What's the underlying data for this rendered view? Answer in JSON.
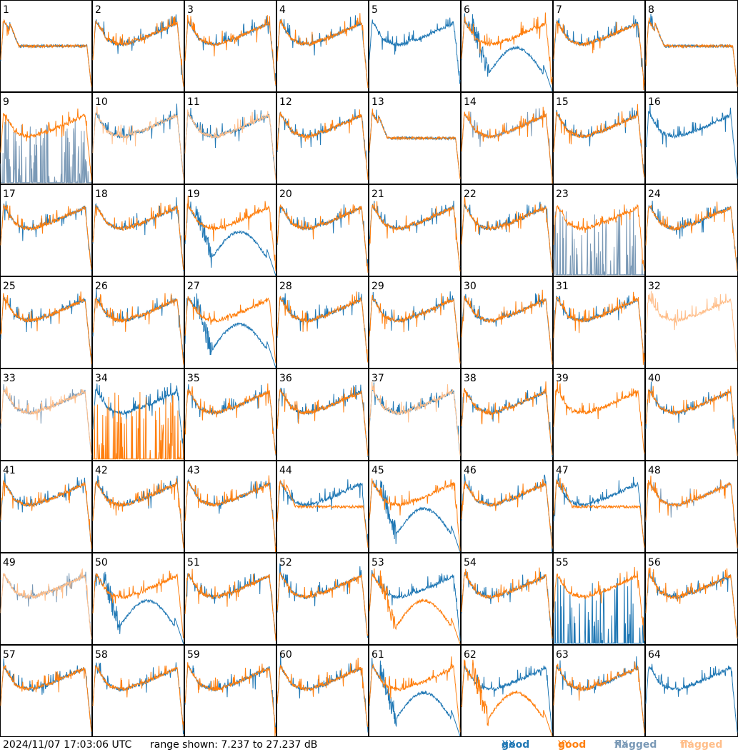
{
  "footer": {
    "timestamp": "2024/11/07 17:03:06 UTC",
    "range_text": "range shown: 7.237 to 27.237 dB"
  },
  "legend": {
    "good_xx": {
      "word": "good",
      "pol": "XX",
      "color": "#1f77b4"
    },
    "good_yy": {
      "word": "good",
      "pol": "YY",
      "color": "#ff7f0e"
    },
    "flagged_xx": {
      "word": "flagged",
      "pol": "XX",
      "color": "#7a99b6"
    },
    "flagged_yy": {
      "word": "flagged",
      "pol": "YY",
      "color": "#ffbe8a"
    }
  },
  "chart_data": {
    "type": "line",
    "layout": "8x8 grid of small multiples",
    "ylim_db": [
      7.237,
      27.237
    ],
    "panels": [
      {
        "id": "1",
        "xx": "droop",
        "yy": "droop"
      },
      {
        "id": "2",
        "xx": "good",
        "yy": "good"
      },
      {
        "id": "3",
        "xx": "good",
        "yy": "good"
      },
      {
        "id": "4",
        "xx": "good",
        "yy": "good"
      },
      {
        "id": "5",
        "xx": "good",
        "yy": "missing"
      },
      {
        "id": "6",
        "xx": "dip",
        "yy": "good"
      },
      {
        "id": "7",
        "xx": "good",
        "yy": "good"
      },
      {
        "id": "8",
        "xx": "droop",
        "yy": "droop"
      },
      {
        "id": "9",
        "xx": "flag-spiky",
        "yy": "good"
      },
      {
        "id": "10",
        "xx": "good",
        "yy": "flag-good"
      },
      {
        "id": "11",
        "xx": "good",
        "yy": "flag-good"
      },
      {
        "id": "12",
        "xx": "good",
        "yy": "good"
      },
      {
        "id": "13",
        "xx": "droop",
        "yy": "droop"
      },
      {
        "id": "14",
        "xx": "flag-good",
        "yy": "good"
      },
      {
        "id": "15",
        "xx": "good",
        "yy": "good"
      },
      {
        "id": "16",
        "xx": "good",
        "yy": "missing"
      },
      {
        "id": "17",
        "xx": "good",
        "yy": "good"
      },
      {
        "id": "18",
        "xx": "good",
        "yy": "good"
      },
      {
        "id": "19",
        "xx": "dip",
        "yy": "good"
      },
      {
        "id": "20",
        "xx": "good",
        "yy": "good"
      },
      {
        "id": "21",
        "xx": "good",
        "yy": "good"
      },
      {
        "id": "22",
        "xx": "good",
        "yy": "good"
      },
      {
        "id": "23",
        "xx": "flag-spiky",
        "yy": "good"
      },
      {
        "id": "24",
        "xx": "good",
        "yy": "good"
      },
      {
        "id": "25",
        "xx": "good",
        "yy": "good"
      },
      {
        "id": "26",
        "xx": "good",
        "yy": "good"
      },
      {
        "id": "27",
        "xx": "dip",
        "yy": "good"
      },
      {
        "id": "28",
        "xx": "good",
        "yy": "good"
      },
      {
        "id": "29",
        "xx": "good",
        "yy": "good"
      },
      {
        "id": "30",
        "xx": "good",
        "yy": "good"
      },
      {
        "id": "31",
        "xx": "good",
        "yy": "good"
      },
      {
        "id": "32",
        "xx": "missing",
        "yy": "flag-good"
      },
      {
        "id": "33",
        "xx": "flag-good",
        "yy": "flag-good"
      },
      {
        "id": "34",
        "xx": "good",
        "yy": "spiky"
      },
      {
        "id": "35",
        "xx": "good",
        "yy": "good"
      },
      {
        "id": "36",
        "xx": "good",
        "yy": "good"
      },
      {
        "id": "37",
        "xx": "good",
        "yy": "flag-good"
      },
      {
        "id": "38",
        "xx": "good",
        "yy": "good"
      },
      {
        "id": "39",
        "xx": "missing",
        "yy": "good"
      },
      {
        "id": "40",
        "xx": "good",
        "yy": "good"
      },
      {
        "id": "41",
        "xx": "good",
        "yy": "good"
      },
      {
        "id": "42",
        "xx": "good",
        "yy": "good"
      },
      {
        "id": "43",
        "xx": "good",
        "yy": "good"
      },
      {
        "id": "44",
        "xx": "good",
        "yy": "droop"
      },
      {
        "id": "45",
        "xx": "dip",
        "yy": "good"
      },
      {
        "id": "46",
        "xx": "good",
        "yy": "good"
      },
      {
        "id": "47",
        "xx": "good",
        "yy": "droop"
      },
      {
        "id": "48",
        "xx": "flag-good",
        "yy": "good"
      },
      {
        "id": "49",
        "xx": "flag-good",
        "yy": "flag-good"
      },
      {
        "id": "50",
        "xx": "dip",
        "yy": "good"
      },
      {
        "id": "51",
        "xx": "good",
        "yy": "good"
      },
      {
        "id": "52",
        "xx": "good",
        "yy": "good"
      },
      {
        "id": "53",
        "xx": "good",
        "yy": "dip"
      },
      {
        "id": "54",
        "xx": "good",
        "yy": "good"
      },
      {
        "id": "55",
        "xx": "spiky",
        "yy": "good"
      },
      {
        "id": "56",
        "xx": "good",
        "yy": "good"
      },
      {
        "id": "57",
        "xx": "good",
        "yy": "good"
      },
      {
        "id": "58",
        "xx": "good",
        "yy": "good"
      },
      {
        "id": "59",
        "xx": "good",
        "yy": "good"
      },
      {
        "id": "60",
        "xx": "good",
        "yy": "good"
      },
      {
        "id": "61",
        "xx": "dip",
        "yy": "good"
      },
      {
        "id": "62",
        "xx": "good",
        "yy": "dip"
      },
      {
        "id": "63",
        "xx": "good",
        "yy": "good"
      },
      {
        "id": "64",
        "xx": "good",
        "yy": "missing"
      }
    ]
  }
}
